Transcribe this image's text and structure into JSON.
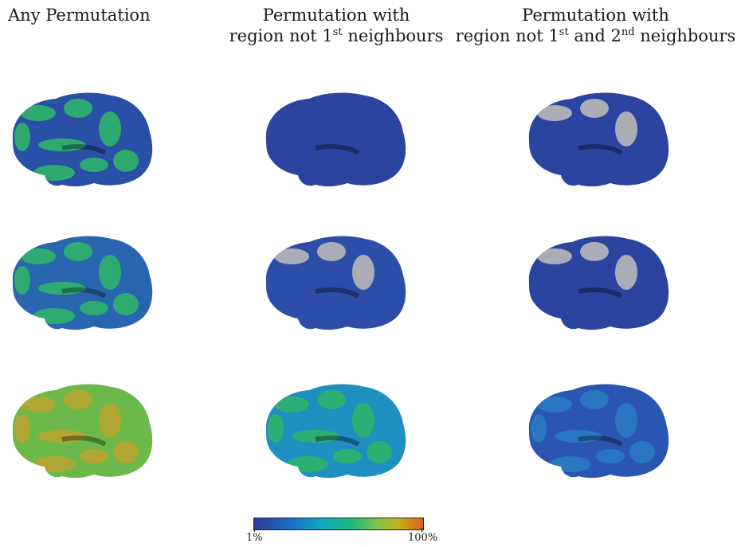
{
  "columns": [
    {
      "title_line1": "Any Permutation",
      "title_line2": ""
    },
    {
      "title_line1": "Permutation with",
      "title_line2_pre": "region not 1",
      "sup1": "st",
      "title_line2_post": " neighbours"
    },
    {
      "title_line1": "Permutation with",
      "title_line2_pre": "region not 1",
      "sup1": "st",
      "mid": " and 2",
      "sup2": "nd",
      "title_line2_post": " neighbours"
    }
  ],
  "colorbar": {
    "min_label": "1%",
    "max_label": "100%",
    "colors": [
      "#2b3c98",
      "#1a6fc4",
      "#10a8c0",
      "#20b77a",
      "#7cc24a",
      "#c4b21e",
      "#e25e1a"
    ]
  },
  "brains": [
    {
      "row": 1,
      "col": 1,
      "base": "#2a4fa6",
      "patch": "#2fb36a"
    },
    {
      "row": 1,
      "col": 2,
      "base": "#2b44a0",
      "patch": "#2b44a0"
    },
    {
      "row": 1,
      "col": 3,
      "base": "#2b44a0",
      "patch": "#b8b8b8"
    },
    {
      "row": 2,
      "col": 1,
      "base": "#2a66b0",
      "patch": "#2fb36a"
    },
    {
      "row": 2,
      "col": 2,
      "base": "#2d4ea8",
      "patch": "#b8b8b8"
    },
    {
      "row": 2,
      "col": 3,
      "base": "#2b44a0",
      "patch": "#b8b8b8"
    },
    {
      "row": 3,
      "col": 1,
      "base": "#6cb84a",
      "patch": "#b8a530"
    },
    {
      "row": 3,
      "col": 2,
      "base": "#1e8fbf",
      "patch": "#2fb36a"
    },
    {
      "row": 3,
      "col": 3,
      "base": "#2a55b0",
      "patch": "#2a7ac2"
    }
  ]
}
